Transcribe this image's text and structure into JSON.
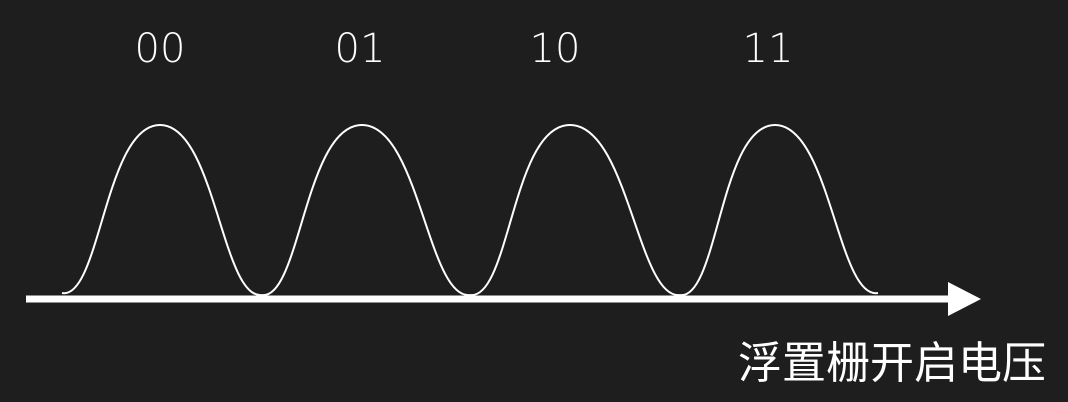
{
  "diagram": {
    "states": [
      {
        "label": "00"
      },
      {
        "label": "01"
      },
      {
        "label": "10"
      },
      {
        "label": "11"
      }
    ],
    "axis_label": "浮置栅开启电压",
    "colors": {
      "background": "#1e1e1e",
      "foreground": "#ffffff"
    }
  }
}
